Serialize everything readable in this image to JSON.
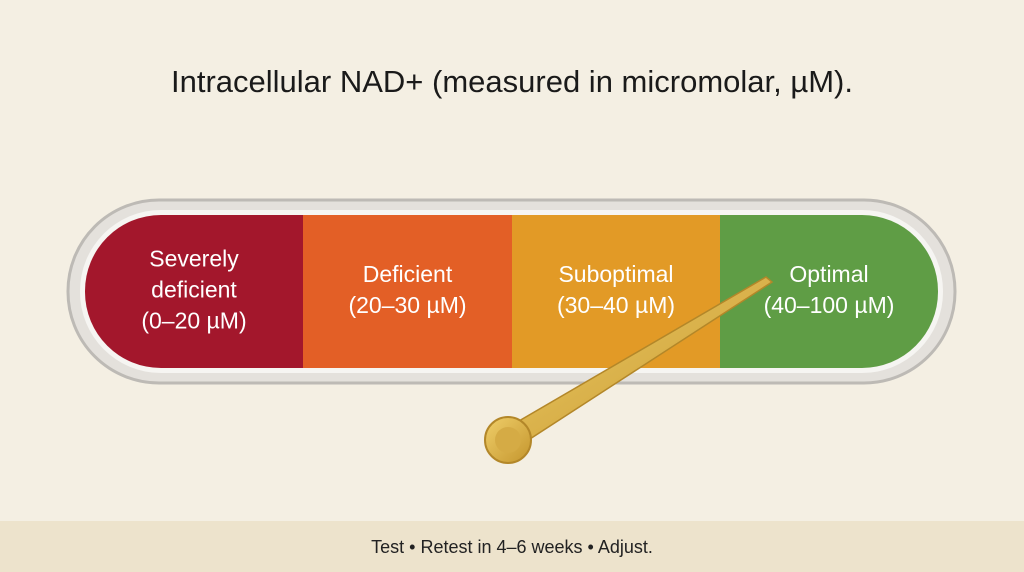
{
  "title": "Intracellular NAD+ (measured in micromolar, µM).",
  "segments": [
    {
      "lines": [
        "Severely",
        "deficient",
        "(0–20 µM)"
      ],
      "color": "#a3172c"
    },
    {
      "lines": [
        "Deficient",
        "(20–30 µM)"
      ],
      "color": "#e35f26"
    },
    {
      "lines": [
        "Suboptimal",
        "(30–40 µM)"
      ],
      "color": "#e29a26"
    },
    {
      "lines": [
        "Optimal",
        "(40–100 µM)"
      ],
      "color": "#5f9d45"
    }
  ],
  "footer": "Test • Retest in 4–6 weeks • Adjust."
}
